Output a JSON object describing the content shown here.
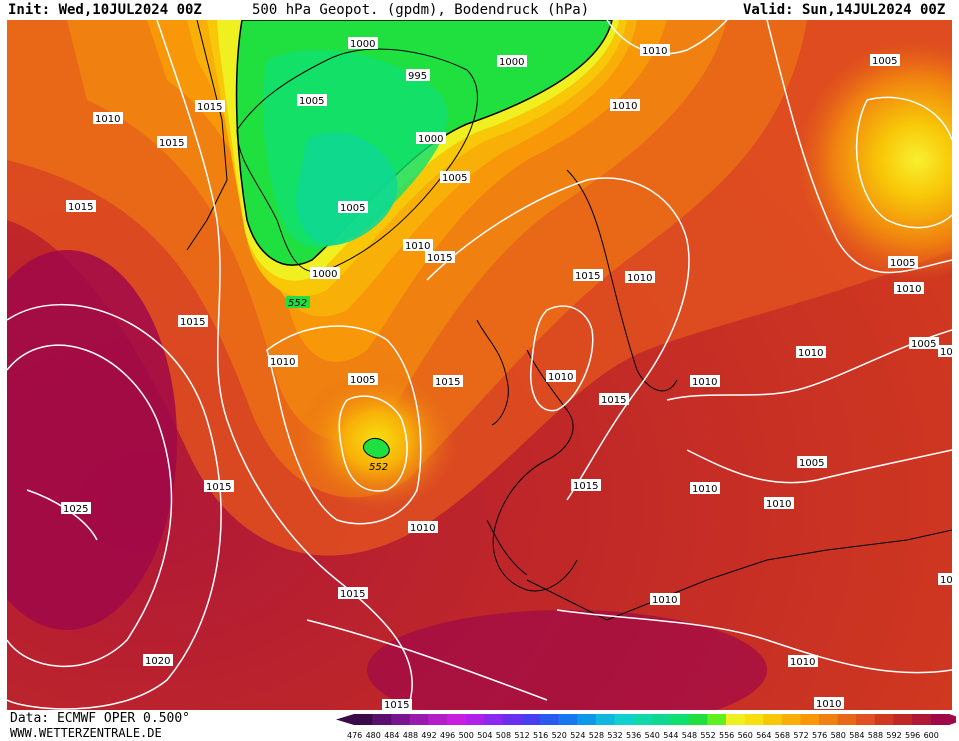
{
  "header": {
    "init": "Init: Wed,10JUL2024 00Z",
    "title": "500 hPa Geopot. (gpdm), Bodendruck (hPa)",
    "valid": "Valid: Sun,14JUL2024 00Z"
  },
  "footer": {
    "source": "Data: ECMWF OPER 0.500°",
    "site": "WWW.WETTERZENTRALE.DE"
  },
  "legend": {
    "ticks": [
      "476",
      "480",
      "484",
      "488",
      "492",
      "496",
      "500",
      "504",
      "508",
      "512",
      "516",
      "520",
      "524",
      "528",
      "532",
      "536",
      "540",
      "544",
      "548",
      "552",
      "556",
      "560",
      "564",
      "568",
      "572",
      "576",
      "580",
      "584",
      "588",
      "592",
      "596",
      "600"
    ],
    "colors": [
      "#3a0a4a",
      "#5a0f6e",
      "#7a1590",
      "#9a1ab0",
      "#b41ec8",
      "#c81ee0",
      "#b020e8",
      "#8a28f0",
      "#6a30f0",
      "#4a3cf0",
      "#2a5af0",
      "#1878f0",
      "#1098e8",
      "#10b8e0",
      "#10d0d0",
      "#10d8a8",
      "#10d890",
      "#10e070",
      "#20e040",
      "#60f020",
      "#f0f020",
      "#f8e010",
      "#f8c808",
      "#f8b008",
      "#f89808",
      "#f08010",
      "#e86818",
      "#e05020",
      "#d03820",
      "#c02828",
      "#b01838",
      "#a00848"
    ]
  },
  "isobars": [
    "1000",
    "995",
    "1005",
    "1000",
    "1000",
    "1005",
    "1005",
    "1000",
    "1010",
    "1015",
    "1015",
    "1015",
    "1010",
    "1015",
    "1005",
    "1015",
    "1015",
    "1010",
    "1015",
    "1010",
    "1010",
    "1015",
    "1015",
    "1015",
    "1010",
    "1015",
    "1010",
    "1010",
    "1010",
    "1005",
    "1010",
    "1010",
    "1005",
    "1005",
    "1010",
    "1010",
    "1005",
    "1025",
    "1020",
    "1015",
    "1010",
    "1010",
    "1010",
    "10",
    "10"
  ],
  "geopotential_labels": [
    "552",
    "552"
  ]
}
